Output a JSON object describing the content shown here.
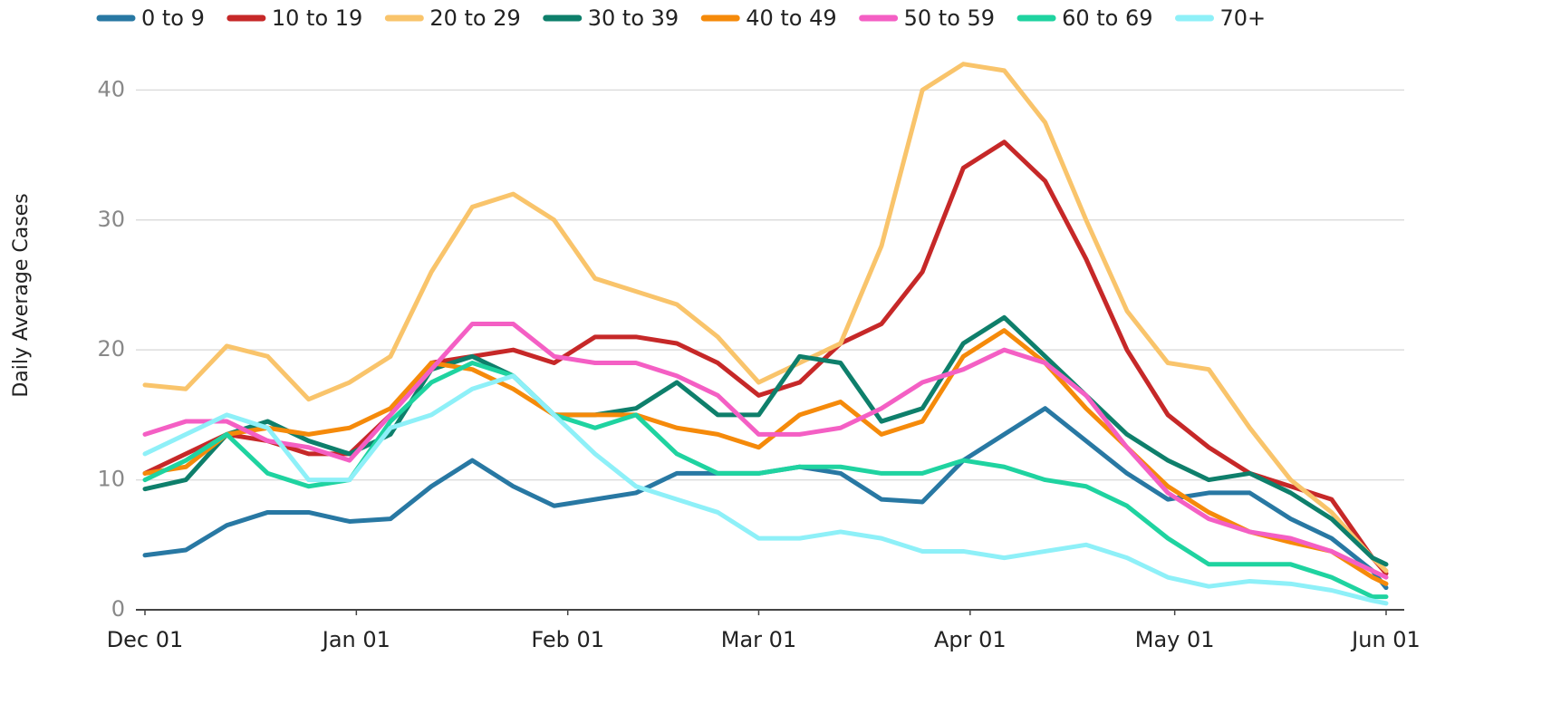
{
  "chart_data": {
    "type": "line",
    "y_label": "Daily Average Cases",
    "x": [
      0,
      6,
      12,
      18,
      24,
      30,
      36,
      42,
      48,
      54,
      60,
      66,
      72,
      78,
      84,
      90,
      96,
      102,
      108,
      114,
      120,
      126,
      132,
      138,
      144,
      150,
      156,
      162,
      168,
      174,
      180,
      182
    ],
    "xlim": [
      0,
      182
    ],
    "xticks": [
      {
        "value": 0,
        "label": "Dec 01"
      },
      {
        "value": 31,
        "label": "Jan 01"
      },
      {
        "value": 62,
        "label": "Feb 01"
      },
      {
        "value": 90,
        "label": "Mar 01"
      },
      {
        "value": 121,
        "label": "Apr 01"
      },
      {
        "value": 151,
        "label": "May 01"
      },
      {
        "value": 182,
        "label": "Jun 01"
      }
    ],
    "ylim": [
      0,
      44
    ],
    "yticks": [
      0,
      10,
      20,
      30,
      40
    ],
    "grid": true,
    "legend": "top",
    "series": [
      {
        "name": "0 to 9",
        "color": "#2878a3",
        "values": [
          4.2,
          4.6,
          6.5,
          7.5,
          7.5,
          6.8,
          7,
          9.5,
          11.5,
          9.5,
          8,
          8.5,
          9,
          10.5,
          10.5,
          10.5,
          11,
          10.5,
          8.5,
          8.3,
          11.5,
          13.5,
          15.5,
          13,
          10.5,
          8.5,
          9,
          9,
          7,
          5.5,
          3,
          1.7
        ]
      },
      {
        "name": "10 to 19",
        "color": "#c62828",
        "values": [
          10.5,
          12,
          13.5,
          13,
          12,
          12,
          15,
          19,
          19.5,
          20,
          19,
          21,
          21,
          20.5,
          19,
          16.5,
          17.5,
          20.5,
          22,
          26,
          34,
          36,
          33,
          27,
          20,
          15,
          12.5,
          10.5,
          9.5,
          8.5,
          4,
          2.8
        ]
      },
      {
        "name": "20 to 29",
        "color": "#f9c46b",
        "values": [
          17.3,
          17,
          20.3,
          19.5,
          16.2,
          17.5,
          19.5,
          26,
          31,
          32,
          30,
          25.5,
          24.5,
          23.5,
          21,
          17.5,
          19,
          20.5,
          28,
          40,
          42,
          41.5,
          37.5,
          30,
          23,
          19,
          18.5,
          14,
          10,
          7.5,
          4,
          3
        ]
      },
      {
        "name": "30 to 39",
        "color": "#0e7f6b",
        "values": [
          9.3,
          10,
          13.5,
          14.5,
          13,
          12,
          13.5,
          18.5,
          19.5,
          18,
          15,
          15,
          15.5,
          17.5,
          15,
          15,
          19.5,
          19,
          14.5,
          15.5,
          20.5,
          22.5,
          19.5,
          16.5,
          13.5,
          11.5,
          10,
          10.5,
          9,
          7,
          4,
          3.5
        ]
      },
      {
        "name": "40 to 49",
        "color": "#f58a0a",
        "values": [
          10.5,
          11,
          13.5,
          14,
          13.5,
          14,
          15.5,
          19,
          18.5,
          17,
          15,
          15,
          15,
          14,
          13.5,
          12.5,
          15,
          16,
          13.5,
          14.5,
          19.5,
          21.5,
          19,
          15.5,
          12.5,
          9.5,
          7.5,
          6,
          5.2,
          4.5,
          2.5,
          2
        ]
      },
      {
        "name": "50 to 59",
        "color": "#f45fc4",
        "values": [
          13.5,
          14.5,
          14.5,
          13,
          12.5,
          11.5,
          15,
          18.5,
          22,
          22,
          19.5,
          19,
          19,
          18,
          16.5,
          13.5,
          13.5,
          14,
          15.5,
          17.5,
          18.5,
          20,
          19,
          16.5,
          12.5,
          9,
          7,
          6,
          5.5,
          4.5,
          3,
          2.5
        ]
      },
      {
        "name": "60 to 69",
        "color": "#1fd3a0",
        "values": [
          10,
          11.5,
          13.5,
          10.5,
          9.5,
          10,
          14.5,
          17.5,
          19,
          18,
          15,
          14,
          15,
          12,
          10.5,
          10.5,
          11,
          11,
          10.5,
          10.5,
          11.5,
          11,
          10,
          9.5,
          8,
          5.5,
          3.5,
          3.5,
          3.5,
          2.5,
          1,
          1
        ]
      },
      {
        "name": "70+",
        "color": "#8ef0f8",
        "values": [
          12,
          13.5,
          15,
          14,
          10,
          10,
          14,
          15,
          17,
          18,
          15,
          12,
          9.5,
          8.5,
          7.5,
          5.5,
          5.5,
          6,
          5.5,
          4.5,
          4.5,
          4,
          4.5,
          5,
          4,
          2.5,
          1.8,
          2.2,
          2,
          1.5,
          0.7,
          0.5
        ]
      }
    ]
  }
}
